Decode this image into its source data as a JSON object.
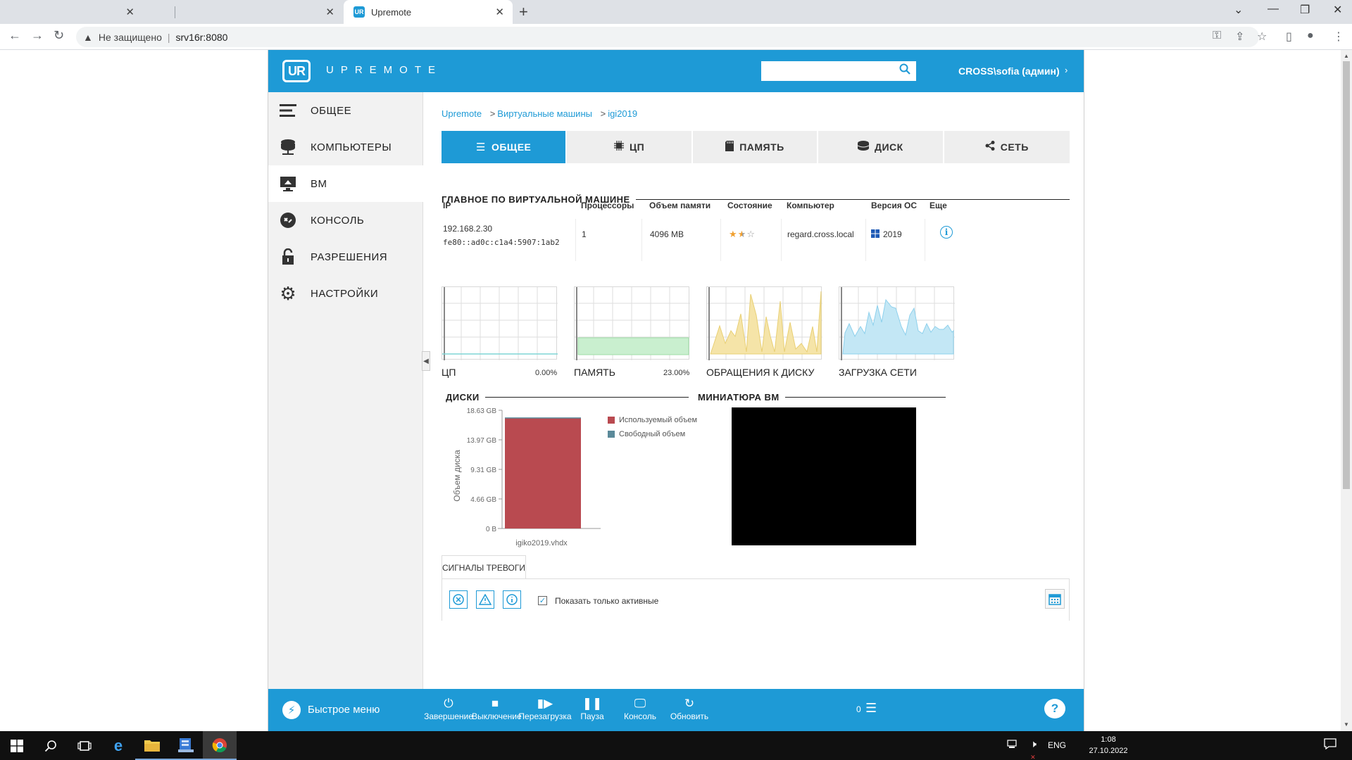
{
  "browser": {
    "tabs": [
      {
        "title": "",
        "close": "✕"
      },
      {
        "title": "",
        "close": "✕"
      },
      {
        "title": "Upremote",
        "close": "✕",
        "favicon": "UR"
      }
    ],
    "new_tab": "+",
    "security_label": "Не защищено",
    "url": "srv16r:8080"
  },
  "app": {
    "logo_badge": "UR",
    "logo_text": "UPREMOTE",
    "search_placeholder": "",
    "user": "CROSS\\sofia (админ)",
    "accent": "#1e9ad6"
  },
  "sidebar": {
    "items": [
      {
        "label": "ОБЩЕЕ",
        "icon": "list-icon"
      },
      {
        "label": "КОМПЬЮТЕРЫ",
        "icon": "server-icon"
      },
      {
        "label": "ВМ",
        "icon": "monitor-icon"
      },
      {
        "label": "КОНСОЛЬ",
        "icon": "console-icon"
      },
      {
        "label": "РАЗРЕШЕНИЯ",
        "icon": "lock-icon"
      },
      {
        "label": "НАСТРОЙКИ",
        "icon": "gear-icon"
      }
    ],
    "active": "ВМ"
  },
  "breadcrumb": [
    "Upremote",
    "Виртуальные машины",
    "igi2019"
  ],
  "tabs": [
    {
      "label": "ОБЩЕЕ",
      "icon": "list-icon"
    },
    {
      "label": "ЦП",
      "icon": "chip-icon"
    },
    {
      "label": "ПАМЯТЬ",
      "icon": "memory-icon"
    },
    {
      "label": "ДИСК",
      "icon": "disk-icon"
    },
    {
      "label": "СЕТЬ",
      "icon": "share-icon"
    }
  ],
  "summary": {
    "title": "ГЛАВНОЕ ПО ВИРТУАЛЬНОЙ МАШИНЕ",
    "headers": {
      "ip": "IP",
      "cpus": "Процессоры",
      "memory": "Объем памяти",
      "state": "Состояние",
      "computer": "Компьютер",
      "os": "Версия ОС",
      "more": "Еще"
    },
    "values": {
      "ip1": "192.168.2.30",
      "ip2": "fe80::ad0c:c1a4:5907:1ab2",
      "cpus": "1",
      "memory": "4096 MB",
      "state_rating": 1.5,
      "computer": "regard.cross.local",
      "os": "2019"
    }
  },
  "metrics": [
    {
      "label": "ЦП",
      "value": "0.00%"
    },
    {
      "label": "ПАМЯТЬ",
      "value": "23.00%"
    },
    {
      "label": "ОБРАЩЕНИЯ К ДИСКУ",
      "value": ""
    },
    {
      "label": "ЗАГРУЗКА СЕТИ",
      "value": ""
    }
  ],
  "disks_title": "ДИСКИ",
  "thumbnail_title": "МИНИАТЮРА ВМ",
  "chart_data": {
    "type": "bar",
    "categories": [
      "igiko2019.vhdx"
    ],
    "series": [
      {
        "name": "Используемый объем",
        "values": [
          17.38
        ],
        "color": "#b94a50"
      },
      {
        "name": "Свободный объем",
        "values": [
          0.12
        ],
        "color": "#5b8a9a"
      }
    ],
    "ylabel": "Объем диска",
    "yticks": [
      "0 B",
      "4.66 GB",
      "9.31 GB",
      "13.97 GB",
      "18.63 GB"
    ],
    "ylim": [
      0,
      18.63
    ],
    "legend": "right"
  },
  "alarms": {
    "tab_label": "СИГНАЛЫ ТРЕВОГИ",
    "show_active_label": "Показать только активные",
    "show_active_checked": true
  },
  "bottom_bar": {
    "quick_menu": "Быстрое меню",
    "actions": [
      "Завершение",
      "Выключение",
      "Перезагрузка",
      "Пауза",
      "Консоль",
      "Обновить"
    ],
    "queue_count": "0"
  },
  "taskbar": {
    "lang": "ENG",
    "time": "1:08",
    "date": "27.10.2022"
  }
}
